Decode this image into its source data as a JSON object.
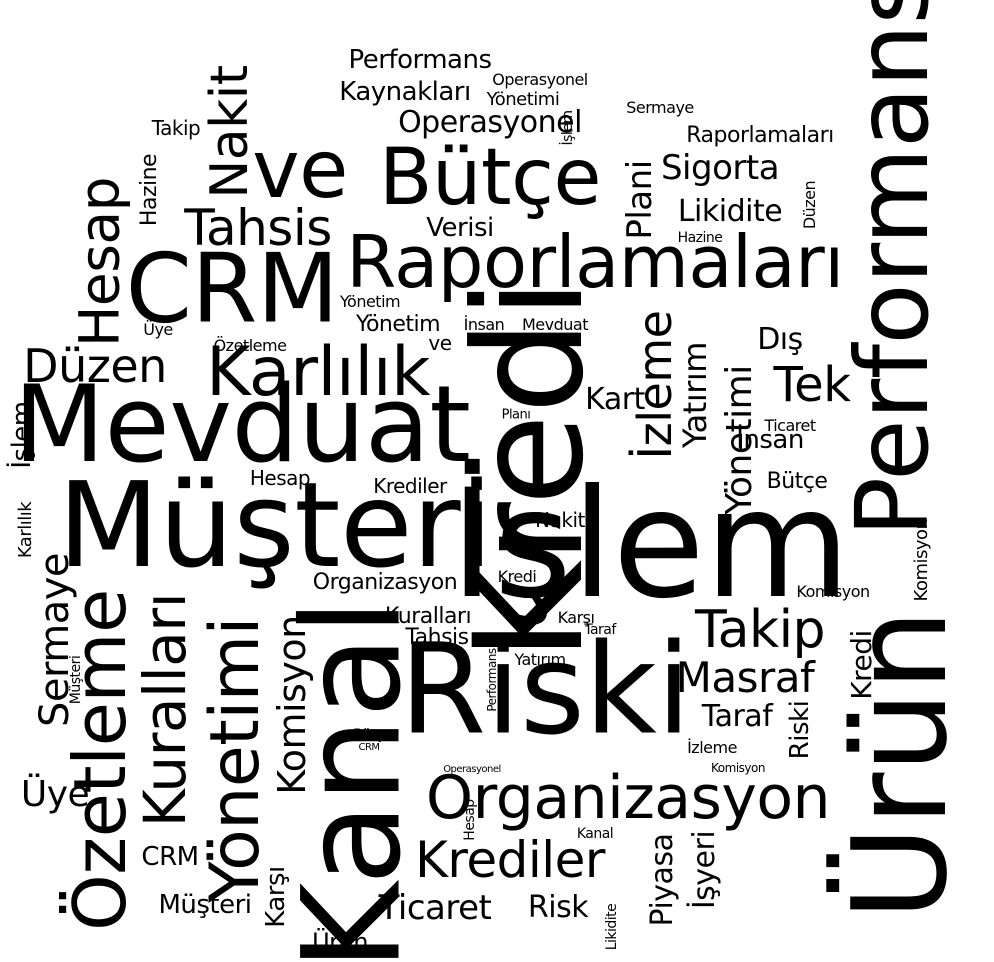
{
  "palette": {
    "background": "#ffffff",
    "text": "#000000"
  },
  "words": [
    "Kredi",
    "İşlem",
    "Müşteri",
    "Riski",
    "Mevduat",
    "Ürün",
    "Kanal",
    "Performans",
    "Raporlamaları",
    "Bütçe",
    "ve",
    "CRM",
    "Karlılık",
    "Organizasyon",
    "Özetleme",
    "Yönetimi",
    "Krediler",
    "Kuralları",
    "Takip",
    "Nakit",
    "Tahsis",
    "Hesap",
    "Düzen",
    "Tek",
    "Masraf",
    "Sermaye",
    "İzleme",
    "Üye",
    "Komisyon",
    "Sigorta",
    "Likidite",
    "Yatırım",
    "Plani",
    "Taraf",
    "Operasyonel",
    "Kaynakları",
    "Ticaret",
    "Piyasa",
    "İşyeri",
    "Karşı",
    "Kart",
    "Dış",
    "İnsan",
    "Hazine",
    "Verisi",
    "Yönetim",
    "Risk",
    "Planı",
    "Kanal",
    "Hesap",
    "Karlılık"
  ]
}
